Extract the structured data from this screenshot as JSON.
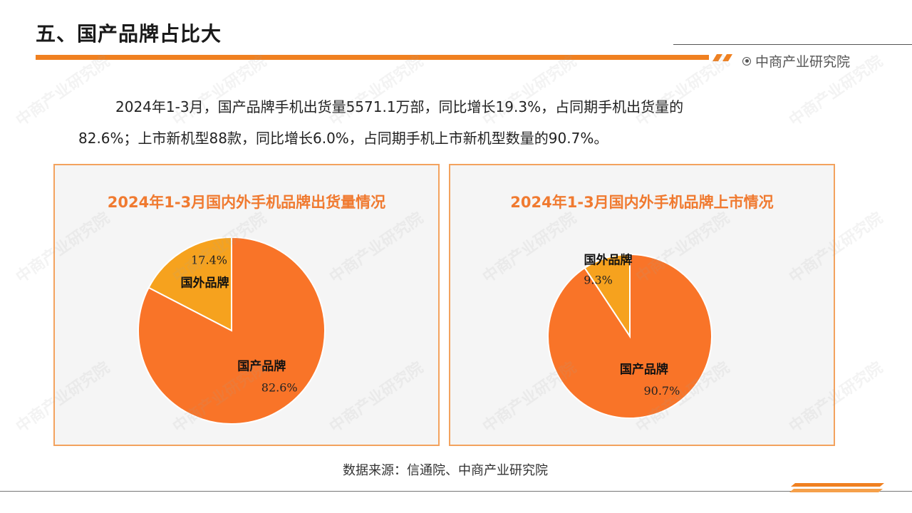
{
  "header": {
    "title": "五、国产品牌占比大",
    "brand": "中商产业研究院"
  },
  "paragraph": {
    "line1": "2024年1-3月，国产品牌手机出货量5571.1万部，同比增长19.3%，占同期手机出货量的",
    "line2": "82.6%；上市新机型88款，同比增长6.0%，占同期手机上市新机型数量的90.7%。"
  },
  "source": "数据来源：信通院、中商产业研究院",
  "watermark_text": "中商产业研究院",
  "colors": {
    "accent": "#f08020",
    "domestic": "#f97428",
    "foreign": "#f6a21e",
    "panel_border": "#f3a25e"
  },
  "chart_data": [
    {
      "type": "pie",
      "title": "2024年1-3月国内外手机品牌出货量情况",
      "slices": [
        {
          "name": "国外品牌",
          "value": 17.4,
          "label": "17.4%"
        },
        {
          "name": "国产品牌",
          "value": 82.6,
          "label": "82.6%"
        }
      ]
    },
    {
      "type": "pie",
      "title": "2024年1-3月国内外手机品牌上市情况",
      "slices": [
        {
          "name": "国外品牌",
          "value": 9.3,
          "label": "9.3%"
        },
        {
          "name": "国产品牌",
          "value": 90.7,
          "label": "90.7%"
        }
      ]
    }
  ]
}
